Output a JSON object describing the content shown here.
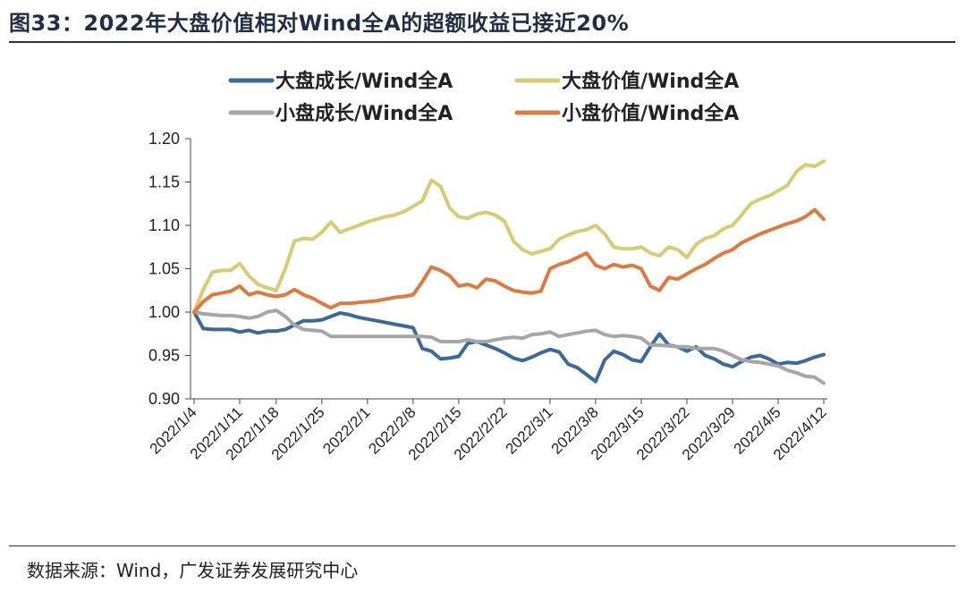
{
  "header": {
    "title": "图33：2022年大盘价值相对Wind全A的超额收益已接近20%"
  },
  "footer": {
    "source": "数据来源：Wind，广发证券发展研究中心"
  },
  "chart_data": {
    "type": "line",
    "title": "2022年大盘价值相对Wind全A的超额收益已接近20%",
    "xlabel": "",
    "ylabel": "",
    "ylim": [
      0.9,
      1.2
    ],
    "yticks": [
      "1.20",
      "1.15",
      "1.10",
      "1.05",
      "1.00",
      "0.95",
      "0.90"
    ],
    "ytick_values": [
      1.2,
      1.15,
      1.1,
      1.05,
      1.0,
      0.95,
      0.9
    ],
    "n_points": 70,
    "xtick_labels": [
      "2022/1/4",
      "2022/1/11",
      "2022/1/18",
      "2022/1/25",
      "2022/2/1",
      "2022/2/8",
      "2022/2/15",
      "2022/2/22",
      "2022/3/1",
      "2022/3/8",
      "2022/3/15",
      "2022/3/22",
      "2022/3/29",
      "2022/4/5",
      "2022/4/12"
    ],
    "xtick_index": [
      0,
      5,
      9,
      14,
      19,
      24,
      29,
      34,
      39,
      44,
      49,
      54,
      59,
      64,
      69
    ],
    "legend_position": "top",
    "series": [
      {
        "name": "大盘成长/Wind全A",
        "color": "#3b6a9a",
        "values": [
          1.0,
          0.981,
          0.98,
          0.98,
          0.98,
          0.977,
          0.979,
          0.976,
          0.978,
          0.978,
          0.98,
          0.985,
          0.99,
          0.99,
          0.991,
          0.995,
          0.999,
          0.997,
          0.994,
          0.992,
          0.99,
          0.988,
          0.986,
          0.984,
          0.982,
          0.958,
          0.955,
          0.946,
          0.947,
          0.949,
          0.964,
          0.966,
          0.962,
          0.958,
          0.953,
          0.947,
          0.944,
          0.948,
          0.953,
          0.957,
          0.954,
          0.94,
          0.936,
          0.928,
          0.92,
          0.945,
          0.955,
          0.951,
          0.945,
          0.943,
          0.96,
          0.975,
          0.962,
          0.96,
          0.955,
          0.96,
          0.95,
          0.946,
          0.94,
          0.937,
          0.943,
          0.948,
          0.95,
          0.946,
          0.94,
          0.942,
          0.941,
          0.944,
          0.948,
          0.951
        ]
      },
      {
        "name": "大盘价值/Wind全A",
        "color": "#d6cc72",
        "values": [
          1.0,
          1.026,
          1.046,
          1.048,
          1.048,
          1.056,
          1.042,
          1.032,
          1.028,
          1.025,
          1.05,
          1.082,
          1.085,
          1.084,
          1.092,
          1.104,
          1.092,
          1.096,
          1.1,
          1.104,
          1.107,
          1.11,
          1.112,
          1.116,
          1.122,
          1.128,
          1.152,
          1.145,
          1.12,
          1.11,
          1.108,
          1.113,
          1.115,
          1.112,
          1.105,
          1.082,
          1.072,
          1.067,
          1.07,
          1.073,
          1.084,
          1.089,
          1.093,
          1.095,
          1.1,
          1.09,
          1.075,
          1.073,
          1.073,
          1.075,
          1.068,
          1.065,
          1.075,
          1.072,
          1.063,
          1.078,
          1.085,
          1.088,
          1.096,
          1.1,
          1.112,
          1.125,
          1.13,
          1.134,
          1.14,
          1.146,
          1.162,
          1.17,
          1.168,
          1.174
        ]
      },
      {
        "name": "小盘成长/Wind全A",
        "color": "#a6a6a6",
        "values": [
          1.0,
          0.998,
          0.997,
          0.996,
          0.996,
          0.995,
          0.993,
          0.995,
          1.0,
          1.002,
          0.995,
          0.985,
          0.98,
          0.979,
          0.978,
          0.972,
          0.972,
          0.972,
          0.972,
          0.972,
          0.972,
          0.972,
          0.972,
          0.972,
          0.972,
          0.972,
          0.971,
          0.966,
          0.966,
          0.966,
          0.968,
          0.966,
          0.966,
          0.968,
          0.97,
          0.971,
          0.97,
          0.974,
          0.975,
          0.977,
          0.972,
          0.974,
          0.976,
          0.978,
          0.979,
          0.974,
          0.972,
          0.973,
          0.972,
          0.97,
          0.962,
          0.962,
          0.961,
          0.96,
          0.96,
          0.958,
          0.958,
          0.958,
          0.955,
          0.95,
          0.945,
          0.943,
          0.942,
          0.94,
          0.938,
          0.933,
          0.93,
          0.926,
          0.925,
          0.918
        ]
      },
      {
        "name": "小盘价值/Wind全A",
        "color": "#dd7a3f",
        "values": [
          1.0,
          1.012,
          1.02,
          1.022,
          1.024,
          1.03,
          1.02,
          1.023,
          1.02,
          1.018,
          1.02,
          1.026,
          1.02,
          1.016,
          1.01,
          1.005,
          1.01,
          1.01,
          1.011,
          1.012,
          1.013,
          1.015,
          1.017,
          1.018,
          1.02,
          1.035,
          1.052,
          1.048,
          1.042,
          1.03,
          1.032,
          1.028,
          1.038,
          1.036,
          1.03,
          1.025,
          1.023,
          1.022,
          1.024,
          1.05,
          1.055,
          1.058,
          1.063,
          1.068,
          1.054,
          1.05,
          1.055,
          1.052,
          1.054,
          1.05,
          1.03,
          1.025,
          1.04,
          1.038,
          1.044,
          1.05,
          1.055,
          1.062,
          1.068,
          1.072,
          1.08,
          1.085,
          1.09,
          1.094,
          1.098,
          1.102,
          1.105,
          1.11,
          1.118,
          1.107
        ]
      }
    ]
  }
}
